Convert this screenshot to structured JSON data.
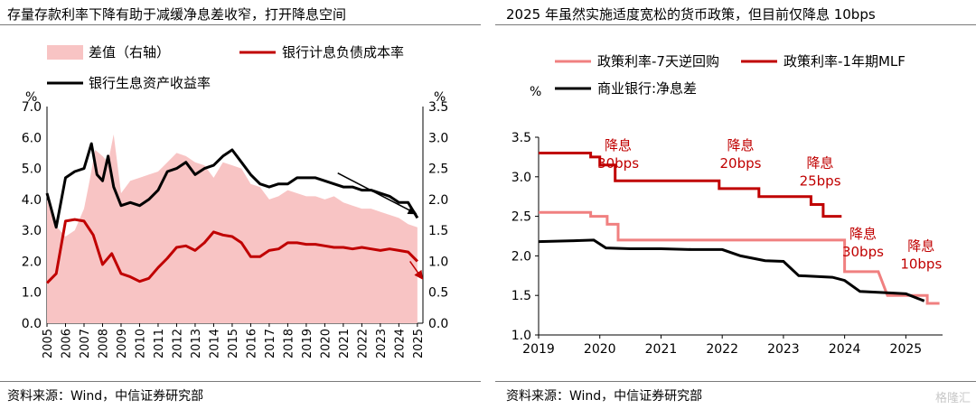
{
  "left": {
    "title": "存量存款利率下降有助于减缓净息差收窄，打开降息空间",
    "source": "资料来源：Wind，中信证券研究部",
    "left_unit": "%",
    "right_unit": "%"
  },
  "right": {
    "title": "2025 年虽然实施适度宽松的货币政策，但目前仅降息 10bps",
    "source": "资料来源：Wind，中信证券研究部",
    "unit": "%"
  },
  "watermark": "格隆汇",
  "colors": {
    "dark_red": "#c00000",
    "pink": "#f08080",
    "fill": "#f8c4c4",
    "black": "#000000"
  },
  "chart_data": [
    {
      "type": "line",
      "title": "存量存款利率下降有助于减缓净息差收窄，打开降息空间",
      "ylim": [
        0,
        7
      ],
      "y2lim": [
        0,
        3.5
      ],
      "yticks": [
        "0.0",
        "1.0",
        "2.0",
        "3.0",
        "4.0",
        "5.0",
        "6.0",
        "7.0"
      ],
      "y2ticks": [
        "0.0",
        "0.5",
        "1.0",
        "1.5",
        "2.0",
        "2.5",
        "3.0",
        "3.5"
      ],
      "xticks": [
        "2005",
        "2006",
        "2007",
        "2008",
        "2009",
        "2010",
        "2011",
        "2012",
        "2013",
        "2014",
        "2015",
        "2016",
        "2017",
        "2018",
        "2019",
        "2020",
        "2021",
        "2022",
        "2023",
        "2024",
        "2025"
      ],
      "xlim": [
        2005,
        2025.3
      ],
      "series": [
        {
          "name": "差值（右轴）",
          "kind": "area",
          "axis": "right",
          "x": [
            2005,
            2005.4,
            2006,
            2006.5,
            2007,
            2007.3,
            2007.6,
            2008,
            2008.3,
            2008.6,
            2009,
            2009.5,
            2010,
            2010.5,
            2011,
            2011.5,
            2012,
            2012.5,
            2013,
            2013.5,
            2014,
            2014.5,
            2015,
            2015.5,
            2016,
            2016.5,
            2017,
            2017.5,
            2018,
            2018.5,
            2019,
            2019.5,
            2020,
            2020.5,
            2021,
            2021.5,
            2022,
            2022.5,
            2023,
            2023.5,
            2024,
            2024.5,
            2025
          ],
          "values": [
            2.0,
            1.6,
            1.4,
            1.5,
            1.85,
            2.3,
            2.8,
            2.7,
            2.6,
            3.05,
            2.1,
            2.3,
            2.35,
            2.4,
            2.45,
            2.6,
            2.75,
            2.7,
            2.6,
            2.55,
            2.35,
            2.6,
            2.55,
            2.5,
            2.25,
            2.2,
            2.0,
            2.05,
            2.15,
            2.1,
            2.05,
            2.05,
            2.0,
            2.05,
            1.95,
            1.9,
            1.85,
            1.85,
            1.8,
            1.75,
            1.7,
            1.6,
            1.55
          ]
        },
        {
          "name": "银行计息负债成本率",
          "kind": "line",
          "axis": "left",
          "color": "#c00000",
          "x": [
            2005,
            2005.5,
            2006,
            2006.5,
            2007,
            2007.5,
            2008,
            2008.5,
            2009,
            2009.5,
            2010,
            2010.5,
            2011,
            2011.5,
            2012,
            2012.5,
            2013,
            2013.5,
            2014,
            2014.5,
            2015,
            2015.5,
            2016,
            2016.5,
            2017,
            2017.5,
            2018,
            2018.5,
            2019,
            2019.5,
            2020,
            2020.5,
            2021,
            2021.5,
            2022,
            2022.5,
            2023,
            2023.5,
            2024,
            2024.5,
            2025
          ],
          "values": [
            1.3,
            1.6,
            3.3,
            3.35,
            3.3,
            2.85,
            1.9,
            2.25,
            1.6,
            1.5,
            1.35,
            1.45,
            1.8,
            2.1,
            2.45,
            2.5,
            2.35,
            2.6,
            2.95,
            2.85,
            2.8,
            2.6,
            2.15,
            2.15,
            2.35,
            2.4,
            2.6,
            2.6,
            2.55,
            2.55,
            2.5,
            2.45,
            2.45,
            2.4,
            2.45,
            2.4,
            2.35,
            2.4,
            2.35,
            2.3,
            2.0
          ]
        },
        {
          "name": "银行生息资产收益率",
          "kind": "line",
          "axis": "left",
          "color": "#000000",
          "x": [
            2005,
            2005.5,
            2006,
            2006.5,
            2007,
            2007.4,
            2007.7,
            2008,
            2008.3,
            2008.6,
            2009,
            2009.5,
            2010,
            2010.5,
            2011,
            2011.5,
            2012,
            2012.5,
            2013,
            2013.5,
            2014,
            2014.5,
            2015,
            2015.5,
            2016,
            2016.5,
            2017,
            2017.5,
            2018,
            2018.5,
            2019,
            2019.5,
            2020,
            2020.5,
            2021,
            2021.5,
            2022,
            2022.5,
            2023,
            2023.5,
            2024,
            2024.5,
            2025
          ],
          "values": [
            4.2,
            3.1,
            4.7,
            4.9,
            5.0,
            5.8,
            4.8,
            4.6,
            5.4,
            4.4,
            3.8,
            3.9,
            3.8,
            4.0,
            4.3,
            4.9,
            5.0,
            5.2,
            4.8,
            5.0,
            5.1,
            5.4,
            5.6,
            5.2,
            4.8,
            4.5,
            4.4,
            4.5,
            4.5,
            4.7,
            4.7,
            4.7,
            4.6,
            4.5,
            4.4,
            4.4,
            4.3,
            4.3,
            4.2,
            4.1,
            3.9,
            3.9,
            3.4
          ]
        }
      ],
      "legend": [
        "差值（右轴）",
        "银行计息负债成本率",
        "银行生息资产收益率"
      ]
    },
    {
      "type": "line",
      "title": "2025 年虽然实施适度宽松的货币政策，但目前仅降息 10bps",
      "ylim": [
        1.0,
        3.5
      ],
      "yticks": [
        "1.0",
        "1.5",
        "2.0",
        "2.5",
        "3.0",
        "3.5"
      ],
      "xticks": [
        "2019",
        "2020",
        "2021",
        "2022",
        "2023",
        "2024",
        "2025"
      ],
      "xlim": [
        2019,
        2025.6
      ],
      "series": [
        {
          "name": "政策利率-7天逆回购",
          "color": "#f08080",
          "x": [
            2019,
            2019.5,
            2019.85,
            2019.85,
            2020.12,
            2020.12,
            2020.3,
            2020.3,
            2024.0,
            2024.0,
            2024.45,
            2024.55,
            2024.6,
            2024.7,
            2025.35,
            2025.35,
            2025.55
          ],
          "values": [
            2.55,
            2.55,
            2.55,
            2.5,
            2.5,
            2.4,
            2.4,
            2.2,
            2.2,
            1.8,
            1.8,
            1.8,
            1.7,
            1.5,
            1.5,
            1.4,
            1.4
          ]
        },
        {
          "name": "政策利率-1年期MLF",
          "color": "#c00000",
          "x": [
            2019,
            2019.85,
            2019.85,
            2020.0,
            2020.0,
            2020.25,
            2020.25,
            2021.95,
            2021.95,
            2022.6,
            2022.6,
            2023.45,
            2023.45,
            2023.65,
            2023.65,
            2023.95
          ],
          "values": [
            3.3,
            3.3,
            3.25,
            3.25,
            3.15,
            3.15,
            2.95,
            2.95,
            2.85,
            2.85,
            2.75,
            2.75,
            2.65,
            2.65,
            2.5,
            2.5
          ]
        },
        {
          "name": "商业银行:净息差",
          "color": "#000000",
          "x": [
            2019,
            2019.5,
            2019.9,
            2020.1,
            2020.5,
            2021.0,
            2021.5,
            2022.0,
            2022.3,
            2022.7,
            2023.0,
            2023.25,
            2023.8,
            2024.0,
            2024.25,
            2024.8,
            2025.0,
            2025.3
          ],
          "values": [
            2.18,
            2.19,
            2.2,
            2.1,
            2.09,
            2.09,
            2.08,
            2.08,
            2.0,
            1.94,
            1.93,
            1.75,
            1.73,
            1.69,
            1.55,
            1.53,
            1.52,
            1.43
          ]
        }
      ],
      "annotations": [
        {
          "lines": [
            "降息",
            "30bps"
          ],
          "color": "#c00000"
        },
        {
          "lines": [
            "降息",
            "20bps"
          ],
          "color": "#c00000"
        },
        {
          "lines": [
            "降息",
            "25bps"
          ],
          "color": "#c00000"
        },
        {
          "lines": [
            "降息",
            "30bps"
          ],
          "color": "#c00000"
        },
        {
          "lines": [
            "降息",
            "10bps"
          ],
          "color": "#c00000"
        }
      ],
      "legend": [
        "政策利率-7天逆回购",
        "政策利率-1年期MLF",
        "商业银行:净息差"
      ]
    }
  ]
}
